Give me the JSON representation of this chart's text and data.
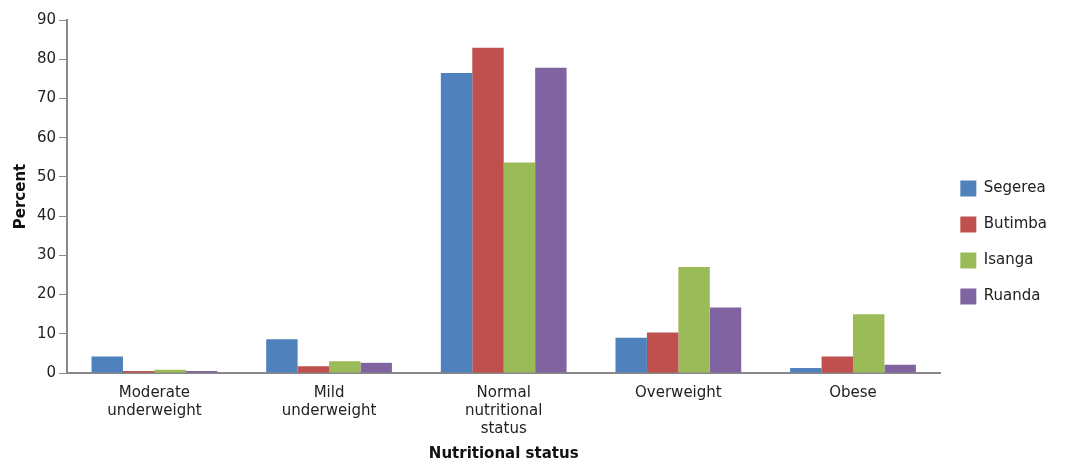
{
  "chart_data": {
    "type": "bar",
    "xlabel": "Nutritional status",
    "ylabel": "Percent",
    "categories": [
      "Moderate underweight",
      "Mild underweight",
      "Normal nutritional status",
      "Overweight",
      "Obese"
    ],
    "series": [
      {
        "name": "Segerea",
        "color": "#4f81bd",
        "values": [
          4.2,
          8.6,
          76.5,
          9.0,
          1.3
        ]
      },
      {
        "name": "Butimba",
        "color": "#c0504d",
        "values": [
          0.5,
          1.7,
          82.9,
          10.3,
          4.2
        ]
      },
      {
        "name": "Isanga",
        "color": "#9bbb59",
        "values": [
          0.8,
          3.0,
          53.7,
          27.0,
          15.0
        ]
      },
      {
        "name": "Ruanda",
        "color": "#8064a2",
        "values": [
          0.5,
          2.6,
          77.8,
          16.7,
          2.1
        ]
      }
    ],
    "ylim": [
      0,
      90
    ],
    "yticks": [
      0,
      10,
      20,
      30,
      40,
      50,
      60,
      70,
      80,
      90
    ],
    "grid": false,
    "legend": "right"
  }
}
